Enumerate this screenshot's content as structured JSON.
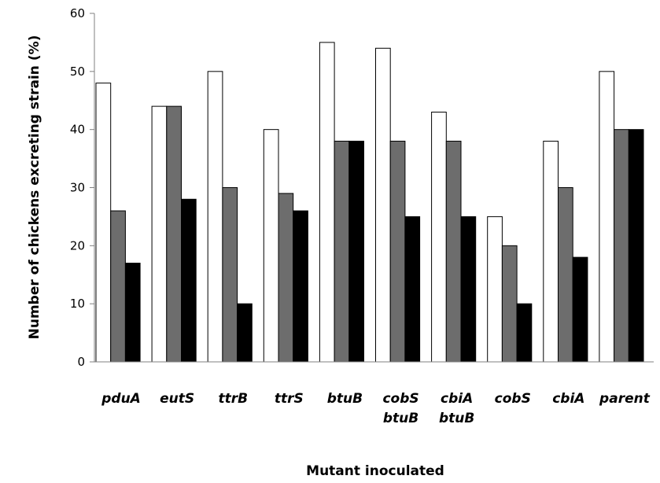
{
  "chart_data": {
    "type": "bar",
    "title": "",
    "xlabel": "Mutant inoculated",
    "ylabel": "Number of chickens excreting strain (%)",
    "ylim": [
      0,
      60
    ],
    "yticks": [
      "0",
      "10",
      "20",
      "30",
      "40",
      "50",
      "60"
    ],
    "categories": [
      "pduA",
      "eutS",
      "ttrB",
      "ttrS",
      "btuB",
      "cobS btuB",
      "cbiA btuB",
      "cobS",
      "cbiA",
      "parent"
    ],
    "category_lines": [
      [
        "pduA"
      ],
      [
        "eutS"
      ],
      [
        "ttrB"
      ],
      [
        "ttrS"
      ],
      [
        "btuB"
      ],
      [
        "cobS",
        "btuB"
      ],
      [
        "cbiA",
        "btuB"
      ],
      [
        "cobS"
      ],
      [
        "cbiA"
      ],
      [
        "parent"
      ]
    ],
    "grid": false,
    "legend": "none",
    "series": [
      {
        "color": "#ffffff",
        "values": [
          48,
          44,
          50,
          40,
          55,
          54,
          43,
          25,
          38,
          50
        ]
      },
      {
        "color": "#6d6d6d",
        "values": [
          26,
          44,
          30,
          29,
          38,
          38,
          38,
          20,
          30,
          40
        ]
      },
      {
        "color": "#000000",
        "values": [
          17,
          28,
          10,
          26,
          38,
          25,
          25,
          10,
          18,
          40
        ]
      }
    ]
  }
}
